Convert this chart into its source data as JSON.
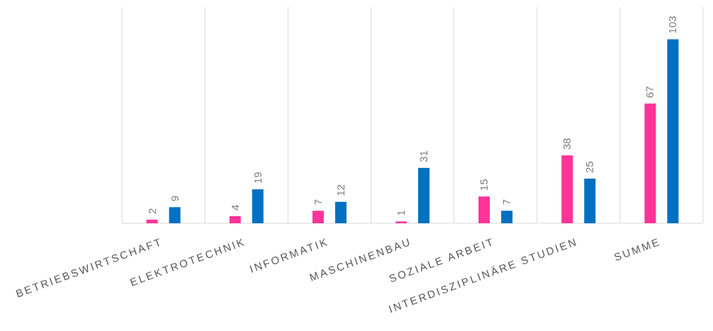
{
  "chart_data": {
    "type": "bar",
    "categories": [
      "BETRIEBSWIRTSCHAFT",
      "ELEKTROTECHNIK",
      "INFORMATIK",
      "MASCHINENBAU",
      "SOZIALE ARBEIT",
      "INTERDISZIPLINÄRE STUDIEN",
      "SUMME"
    ],
    "series": [
      {
        "color": "#ff3399",
        "values": [
          2,
          4,
          7,
          1,
          15,
          38,
          67
        ]
      },
      {
        "color": "#0070c0",
        "values": [
          9,
          19,
          12,
          31,
          7,
          25,
          103
        ]
      }
    ],
    "data_labels": true,
    "grid": "x"
  }
}
